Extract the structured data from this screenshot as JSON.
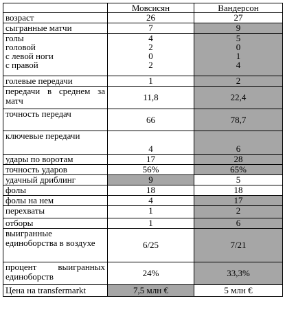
{
  "header": {
    "col1": "",
    "col2": "Мовсисян",
    "col3": "Вандерсон"
  },
  "rows": [
    {
      "label": "возраст",
      "a": "26",
      "b": "27"
    },
    {
      "label": "сыгранные матчи",
      "a": "7",
      "b": "9"
    },
    {
      "labels": [
        "голы",
        "головой",
        "с левой ноги",
        "с правой"
      ],
      "a": [
        "4",
        "2",
        "0",
        "2"
      ],
      "b": [
        "5",
        "0",
        "1",
        "4"
      ]
    },
    {
      "label": "голевые передачи",
      "a": "1",
      "b": "2"
    },
    {
      "label": "передачи в среднем за матч",
      "a": "11,8",
      "b": "22,4"
    },
    {
      "label": "точность передач",
      "a": "66",
      "b": "78,7"
    },
    {
      "label": "ключевые передачи",
      "a": "4",
      "b": "6"
    },
    {
      "label": "удары по воротам",
      "a": "17",
      "b": "28"
    },
    {
      "label": "точность ударов",
      "a": "56%",
      "b": "65%"
    },
    {
      "label": "удачный дриблинг",
      "a": "9",
      "b": "5"
    },
    {
      "label": "фолы",
      "a": "18",
      "b": "18"
    },
    {
      "label": "фолы на нем",
      "a": "4",
      "b": "17"
    },
    {
      "label": "перехваты",
      "a": "1",
      "b": "2"
    },
    {
      "label": "отборы",
      "a": "1",
      "b": "6"
    },
    {
      "label": "выигранные единоборства в воздухе",
      "a": "6/25",
      "b": "7/21"
    },
    {
      "label": "процент выигранных единоборств",
      "a": "24%",
      "b": "33,3%"
    },
    {
      "label": "Цена на transfermarkt",
      "a": "7,5 млн  €",
      "b": "5 млн €"
    }
  ],
  "colors": {
    "highlight": "#a6a6a6",
    "border": "#000000"
  }
}
